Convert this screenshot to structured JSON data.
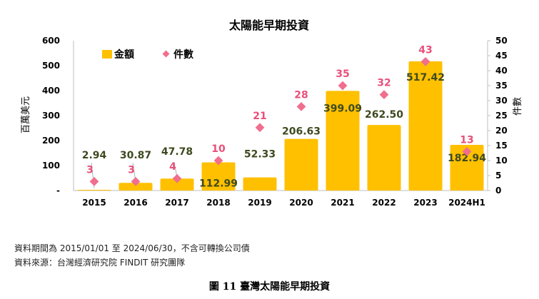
{
  "chart_data": {
    "type": "bar",
    "title": "太陽能早期投資",
    "categories": [
      "2015",
      "2016",
      "2017",
      "2018",
      "2019",
      "2020",
      "2021",
      "2022",
      "2023",
      "2024H1"
    ],
    "series": [
      {
        "name": "金額",
        "kind": "bar",
        "axis": "left",
        "values": [
          2.94,
          30.87,
          47.78,
          112.99,
          52.33,
          206.63,
          399.09,
          262.5,
          517.42,
          182.94
        ],
        "labels": [
          "2.94",
          "30.87",
          "47.78",
          "112.99",
          "52.33",
          "206.63",
          "399.09",
          "262.50",
          "517.42",
          "182.94"
        ]
      },
      {
        "name": "件數",
        "kind": "scatter",
        "axis": "right",
        "values": [
          3,
          3,
          4,
          10,
          21,
          28,
          35,
          32,
          43,
          13
        ],
        "labels": [
          "3",
          "3",
          "4",
          "10",
          "21",
          "28",
          "35",
          "32",
          "43",
          "13"
        ]
      }
    ],
    "ylabel": "百萬美元",
    "y2label": "件數",
    "ylim": [
      0,
      600
    ],
    "y2lim": [
      0,
      50
    ],
    "yticks": [
      "-",
      "100",
      "200",
      "300",
      "400",
      "500",
      "600"
    ],
    "y2ticks": [
      "0",
      "5",
      "10",
      "15",
      "20",
      "25",
      "30",
      "35",
      "40",
      "45",
      "50"
    ],
    "grid": false,
    "legend_position": "top-left",
    "colors": {
      "bar": "#FFC000",
      "marker": "#F06E8E",
      "bar_label": "#3D4A1F",
      "count_label": "#E8507A"
    }
  },
  "notes": {
    "period": "資料期間為 2015/01/01 至 2024/06/30，不含可轉換公司債",
    "source": "資料來源：台灣經濟研究院 FINDIT 研究團隊"
  },
  "caption": "圖 11  臺灣太陽能早期投資"
}
